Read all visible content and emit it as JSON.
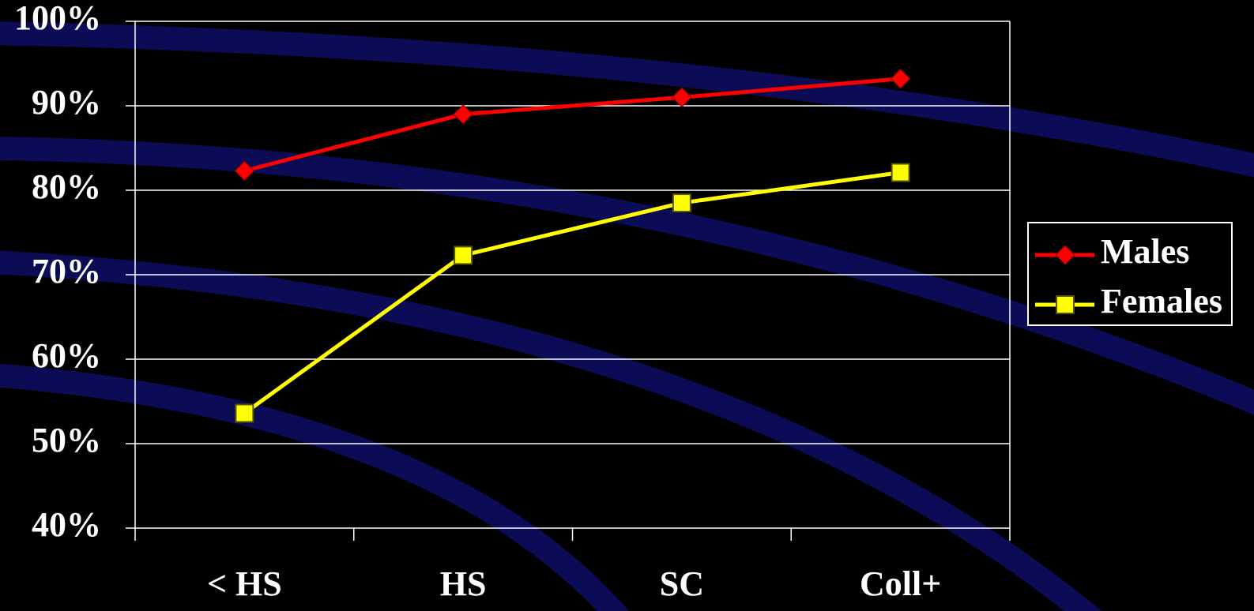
{
  "chart_data": {
    "type": "line",
    "categories": [
      "< HS",
      "HS",
      "SC",
      "Coll+"
    ],
    "series": [
      {
        "name": "Males",
        "color": "#ff0000",
        "marker": "diamond",
        "values": [
          82.3,
          89.0,
          91.0,
          93.2
        ]
      },
      {
        "name": "Females",
        "color": "#ffff00",
        "marker": "square",
        "values": [
          53.6,
          72.3,
          78.5,
          82.1
        ]
      }
    ],
    "ylim": [
      40,
      100
    ],
    "yticks": [
      {
        "value": 40,
        "label": "40%"
      },
      {
        "value": 50,
        "label": "50%"
      },
      {
        "value": 60,
        "label": "60%"
      },
      {
        "value": 70,
        "label": "70%"
      },
      {
        "value": 80,
        "label": "80%"
      },
      {
        "value": 90,
        "label": "90%"
      },
      {
        "value": 100,
        "label": "100%"
      }
    ],
    "grid": true,
    "legend": "right"
  }
}
